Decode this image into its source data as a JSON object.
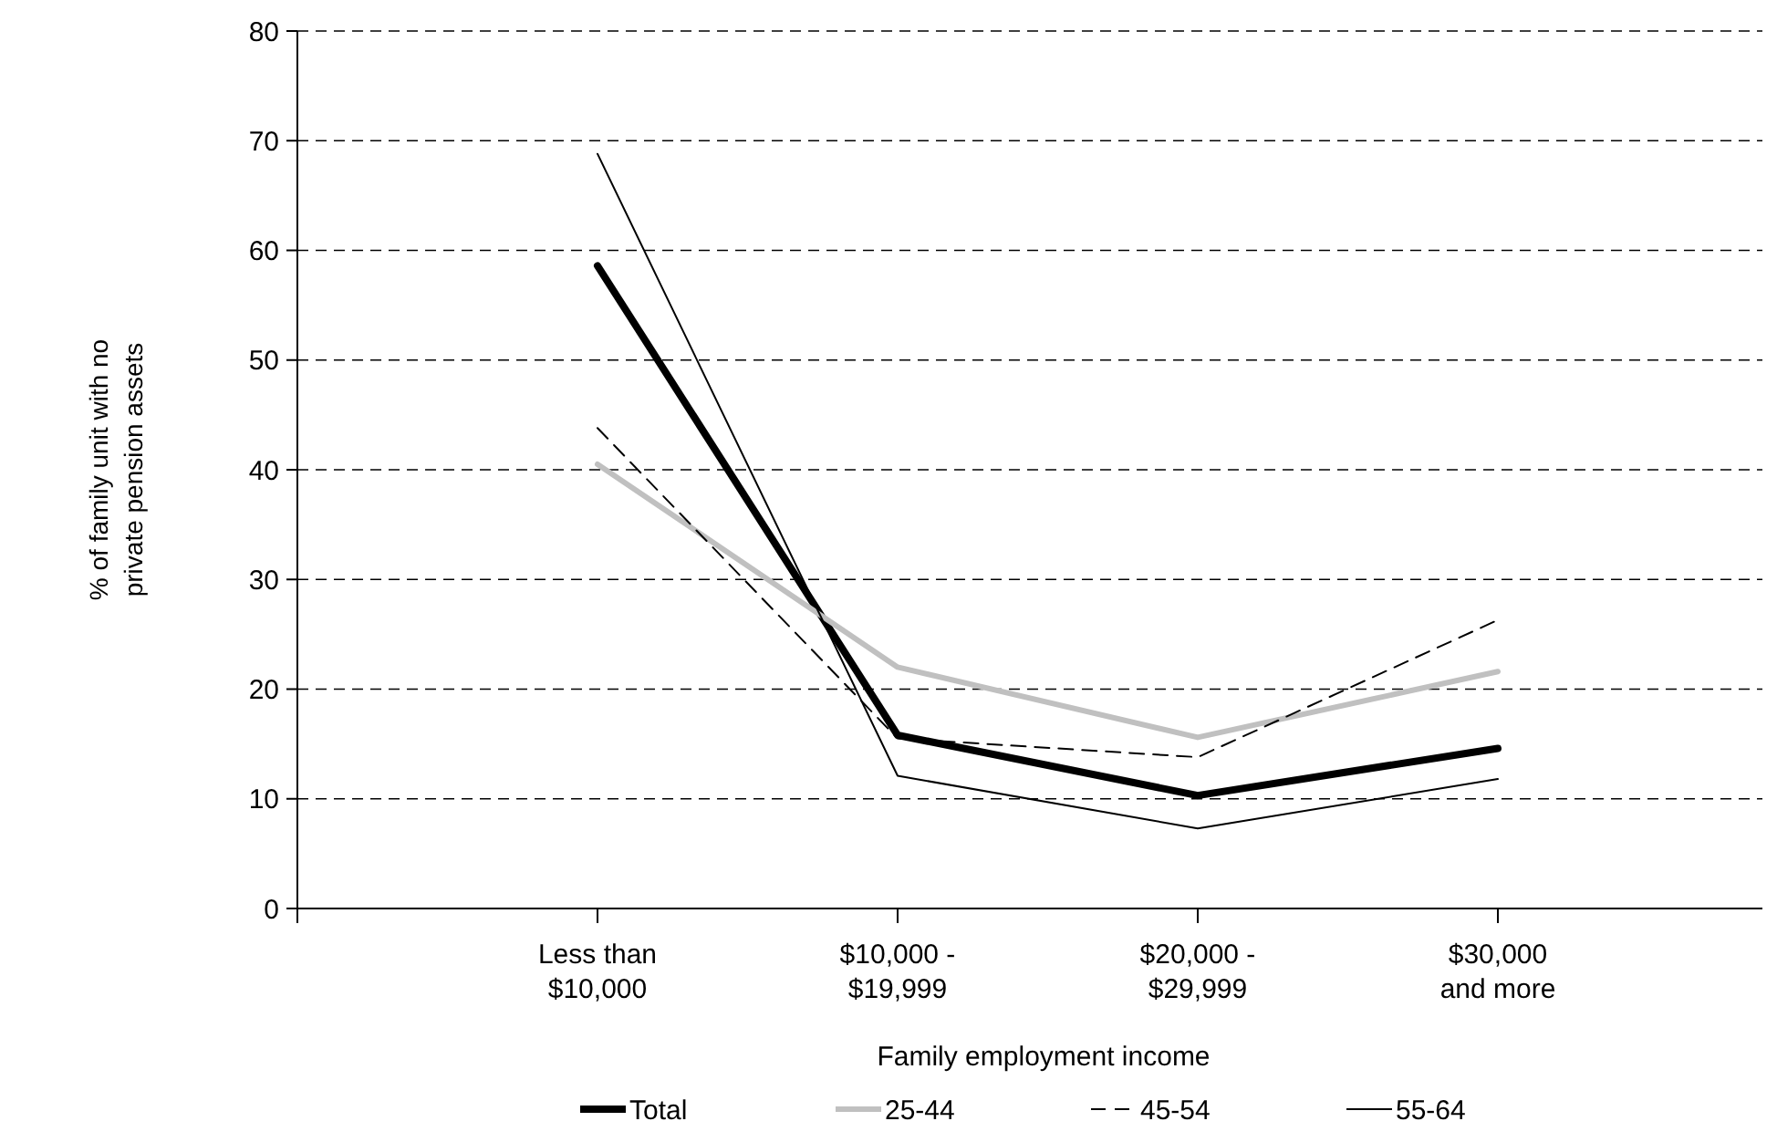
{
  "chart_data": {
    "type": "line",
    "xlabel": "Family employment income",
    "ylabel": "% of family unit with no private pension assets",
    "categories": [
      "Less than\n$10,000",
      "$10,000 -\n$19,999",
      "$20,000 -\n$29,999",
      "$30,000\nand more"
    ],
    "series": [
      {
        "name": "Total",
        "color": "#000000",
        "values": [
          58.6,
          15.8,
          10.3,
          14.6
        ]
      },
      {
        "name": "25-44",
        "color": "#c0c0c0",
        "values": [
          40.5,
          22.0,
          15.6,
          21.6
        ]
      },
      {
        "name": "45-54",
        "color": "#000000",
        "line_style": "dashed",
        "values": [
          43.8,
          15.5,
          13.8,
          26.3
        ]
      },
      {
        "name": "55-64",
        "color": "#000000",
        "values": [
          68.8,
          12.1,
          7.3,
          11.8
        ]
      }
    ],
    "ylim": [
      0,
      80
    ],
    "yticks": [
      0,
      10,
      20,
      30,
      40,
      50,
      60,
      70,
      80
    ],
    "grid": "y",
    "legend": "bottom",
    "marker": "none"
  }
}
